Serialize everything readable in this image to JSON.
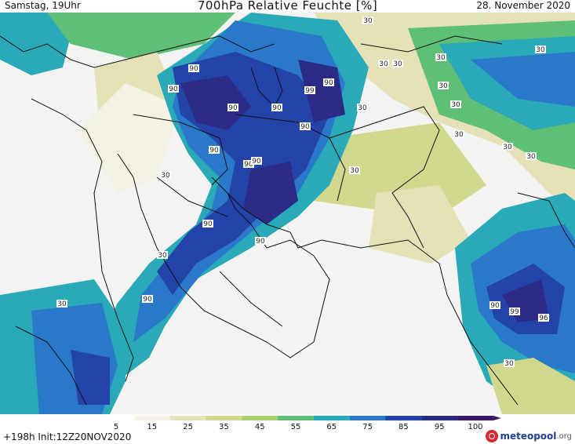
{
  "header": {
    "left": "Samstag, 19Uhr",
    "title": "700hPa Relative Feuchte [%]",
    "right": "28. November 2020"
  },
  "footer": {
    "run_info": "+198h  Init:12Z20NOV2020",
    "logo_text": "meteopool",
    "logo_suffix": ".org"
  },
  "colorbar": {
    "ticks": [
      "5",
      "15",
      "25",
      "35",
      "45",
      "55",
      "65",
      "75",
      "85",
      "95",
      "100"
    ],
    "colors": [
      "#ffffff",
      "#f4f2e4",
      "#e6e2b8",
      "#d2d88e",
      "#a8cf6c",
      "#5fbf77",
      "#2aa9b9",
      "#2a78c9",
      "#2443a8",
      "#2b2a85",
      "#3a1966"
    ]
  },
  "map": {
    "contour_labels": [
      "30",
      "30",
      "30",
      "30",
      "30",
      "30",
      "30",
      "30",
      "30",
      "30",
      "30",
      "30",
      "30",
      "30",
      "30",
      "30",
      "90",
      "90",
      "90",
      "90",
      "90",
      "90",
      "90",
      "90",
      "90",
      "90",
      "90",
      "90",
      "99",
      "99",
      "96",
      "90"
    ]
  }
}
